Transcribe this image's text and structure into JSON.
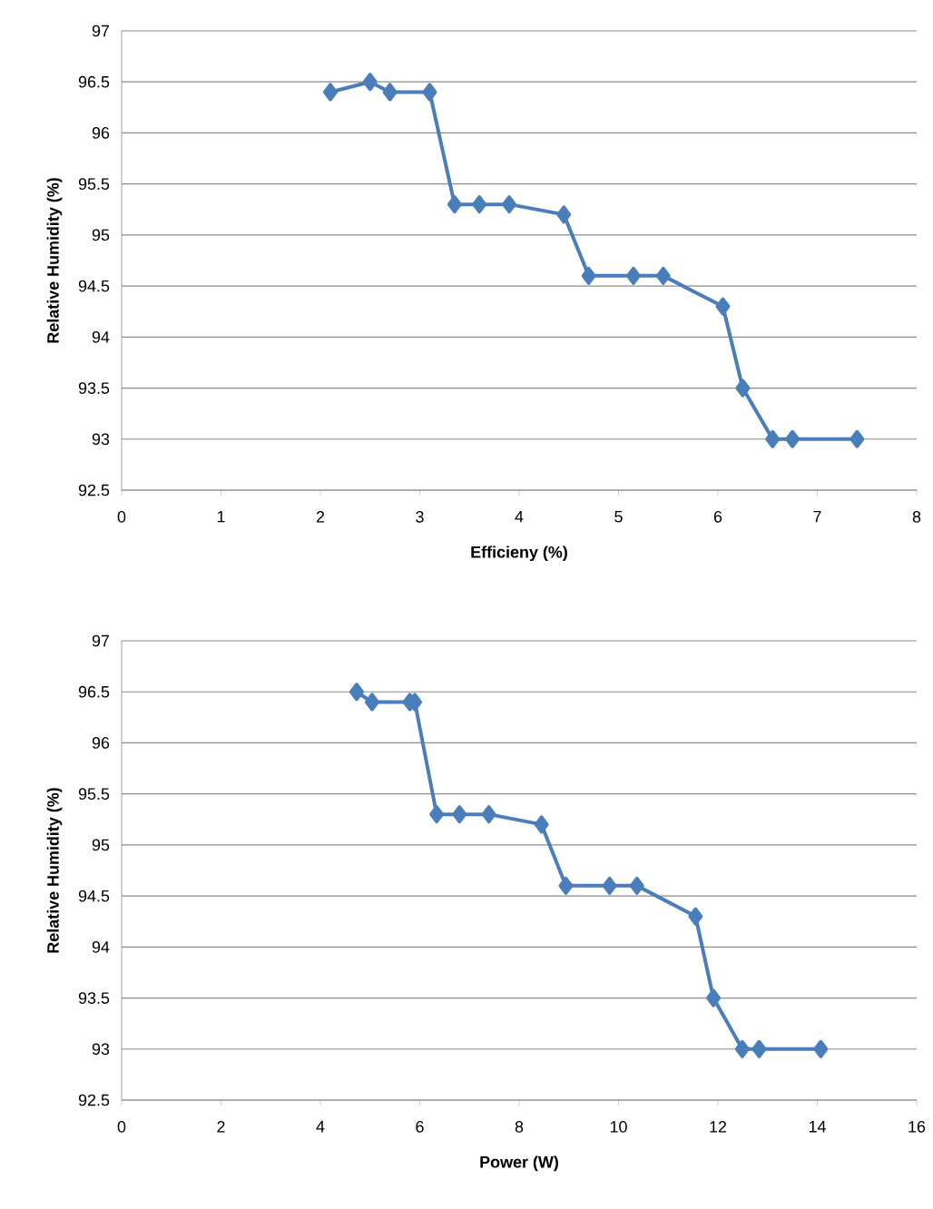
{
  "chart_data": [
    {
      "type": "line",
      "xlabel": "Efficieny (%)",
      "ylabel": "Relative Humidity (%)",
      "color": "#4a7ebb",
      "marker": "diamond",
      "line_style": "solid",
      "grid": "y",
      "x": [
        2.1,
        2.5,
        2.7,
        3.1,
        3.35,
        3.6,
        3.9,
        4.45,
        4.7,
        5.15,
        5.45,
        6.05,
        6.25,
        6.55,
        6.75,
        7.4
      ],
      "values": [
        96.4,
        96.5,
        96.4,
        96.4,
        95.3,
        95.3,
        95.3,
        95.2,
        94.6,
        94.6,
        94.6,
        94.3,
        93.5,
        93.0,
        93.0,
        93.0
      ],
      "xlim": [
        0,
        8
      ],
      "xticks": [
        0,
        1,
        2,
        3,
        4,
        5,
        6,
        7,
        8
      ],
      "ylim": [
        92.5,
        97
      ],
      "yticks": [
        92.5,
        93,
        93.5,
        94,
        94.5,
        95,
        95.5,
        96,
        96.5,
        97
      ]
    },
    {
      "type": "line",
      "xlabel": "Power (W)",
      "ylabel": "Relative Humidity (%)",
      "color": "#4a7ebb",
      "marker": "diamond",
      "line_style": "solid",
      "grid": "y",
      "x": [
        4.73,
        5.04,
        5.8,
        5.9,
        6.34,
        6.8,
        7.39,
        8.45,
        8.94,
        9.82,
        10.37,
        11.55,
        11.91,
        12.49,
        12.83,
        14.07
      ],
      "values": [
        96.5,
        96.4,
        96.4,
        96.4,
        95.3,
        95.3,
        95.3,
        95.2,
        94.6,
        94.6,
        94.6,
        94.3,
        93.5,
        93.0,
        93.0,
        93.0
      ],
      "xlim": [
        0,
        16
      ],
      "xticks": [
        0,
        2,
        4,
        6,
        8,
        10,
        12,
        14,
        16
      ],
      "ylim": [
        92.5,
        97
      ],
      "yticks": [
        92.5,
        93,
        93.5,
        94,
        94.5,
        95,
        95.5,
        96,
        96.5,
        97
      ]
    }
  ]
}
